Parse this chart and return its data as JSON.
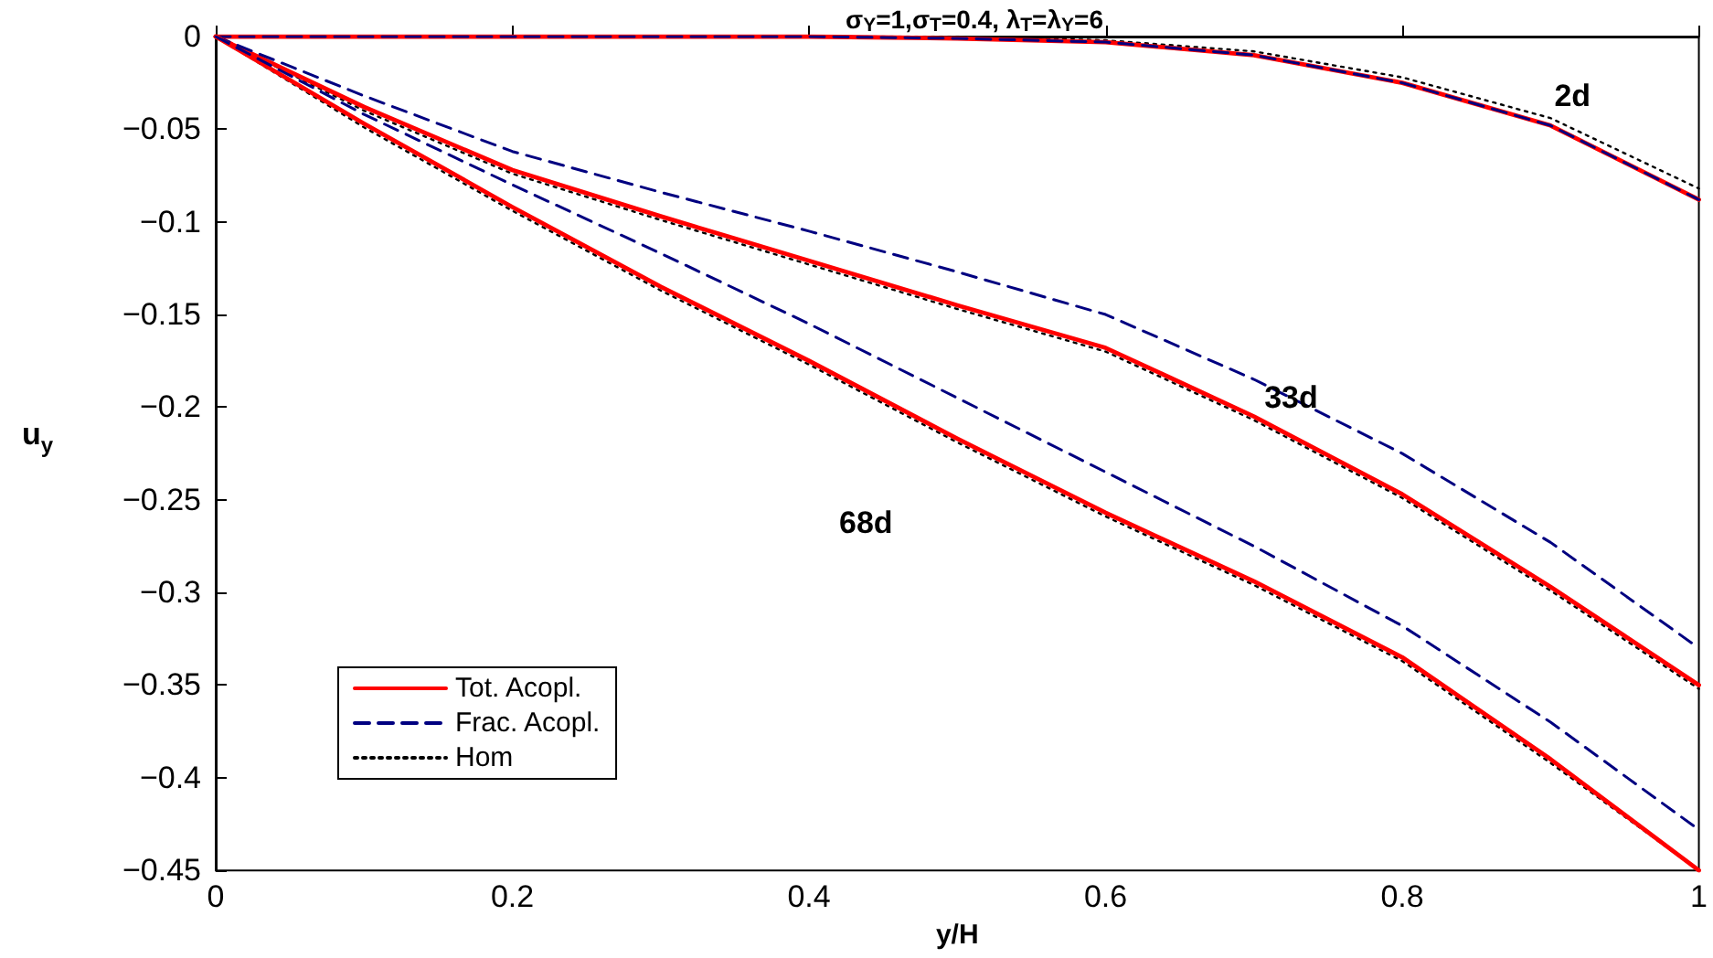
{
  "chart_data": {
    "type": "line",
    "title": "σ$_{Y}$=1,σ$_{T}$=0.4, λ$_{T}$=λ$_{Y}$=6",
    "xlabel": "y/H",
    "ylabel": "u$_{y}$",
    "x": [
      0,
      0.1,
      0.2,
      0.3,
      0.4,
      0.5,
      0.6,
      0.7,
      0.8,
      0.9,
      1
    ],
    "series": [
      {
        "name": "Tot. Acopl.",
        "color": "#ff0000",
        "line_style": "solid",
        "values": [
          0,
          0,
          0,
          0,
          0,
          -0.001,
          -0.003,
          -0.01,
          -0.025,
          -0.048,
          -0.088
        ]
      },
      {
        "name": "Frac. Acopl.",
        "color": "#000080",
        "line_style": "dashed",
        "values": [
          0,
          0,
          0,
          0,
          0,
          -0.001,
          -0.003,
          -0.01,
          -0.025,
          -0.048,
          -0.088
        ]
      },
      {
        "name": "Hom",
        "color": "#000000",
        "line_style": "dotted",
        "values": [
          0,
          0,
          0,
          0,
          0,
          0,
          -0.002,
          -0.008,
          -0.022,
          -0.044,
          -0.082
        ]
      },
      {
        "color": "#ff0000",
        "line_style": "solid",
        "values": [
          0,
          -0.038,
          -0.072,
          -0.097,
          -0.121,
          -0.145,
          -0.168,
          -0.205,
          -0.247,
          -0.297,
          -0.35
        ]
      },
      {
        "color": "#000080",
        "line_style": "dashed",
        "values": [
          0,
          -0.032,
          -0.062,
          -0.084,
          -0.105,
          -0.127,
          -0.15,
          -0.185,
          -0.225,
          -0.273,
          -0.33
        ]
      },
      {
        "color": "#000000",
        "line_style": "dotted",
        "values": [
          0,
          -0.04,
          -0.074,
          -0.099,
          -0.123,
          -0.147,
          -0.17,
          -0.207,
          -0.249,
          -0.299,
          -0.352
        ]
      },
      {
        "color": "#ff0000",
        "line_style": "solid",
        "values": [
          0,
          -0.047,
          -0.092,
          -0.135,
          -0.175,
          -0.217,
          -0.257,
          -0.294,
          -0.335,
          -0.39,
          -0.45
        ]
      },
      {
        "color": "#000080",
        "line_style": "dashed",
        "values": [
          0,
          -0.042,
          -0.08,
          -0.117,
          -0.155,
          -0.195,
          -0.235,
          -0.275,
          -0.318,
          -0.37,
          -0.428
        ]
      },
      {
        "color": "#000000",
        "line_style": "dotted",
        "values": [
          0,
          -0.049,
          -0.094,
          -0.137,
          -0.177,
          -0.219,
          -0.259,
          -0.296,
          -0.337,
          -0.392,
          -0.45
        ]
      }
    ],
    "annotations": [
      {
        "text": "2d",
        "x": 0.9,
        "y": -0.044
      },
      {
        "text": "33d",
        "x": 0.73,
        "y": -0.2
      },
      {
        "text": "68d",
        "x": 0.5,
        "y": -0.217
      }
    ],
    "xlim": [
      0,
      1
    ],
    "xticks": [
      0,
      0.2,
      0.4,
      0.6,
      0.8,
      1
    ],
    "ylim": [
      -0.45,
      0
    ],
    "yticks": [
      -0.45,
      -0.4,
      -0.35,
      -0.3,
      -0.25,
      -0.2,
      -0.15,
      -0.1,
      -0.05,
      0
    ],
    "grid": false,
    "legend": "bottom left",
    "marker": "none"
  }
}
